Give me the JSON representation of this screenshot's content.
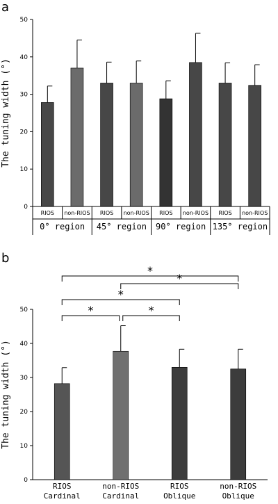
{
  "chart_data": [
    {
      "panel": "a",
      "type": "bar",
      "ylabel": "The tuning width (°)",
      "ylim": [
        0,
        50
      ],
      "yticks": [
        0,
        10,
        20,
        30,
        40,
        50
      ],
      "categories": [
        "RIOS",
        "non-RIOS",
        "RIOS",
        "non-RIOS",
        "RIOS",
        "non-RIOS",
        "RIOS",
        "non-RIOS"
      ],
      "groups": [
        "0° region",
        "45° region",
        "90° region",
        "135° region"
      ],
      "values": [
        27.8,
        37.0,
        33.0,
        33.0,
        28.8,
        38.5,
        33.0,
        32.4
      ],
      "errors": [
        4.4,
        7.5,
        5.6,
        5.9,
        4.8,
        7.8,
        5.4,
        5.5
      ],
      "colors": [
        "#474747",
        "#6b6b6b",
        "#474747",
        "#6b6b6b",
        "#333333",
        "#474747",
        "#474747",
        "#474747"
      ]
    },
    {
      "panel": "b",
      "type": "bar",
      "ylabel": "The tuning width (°)",
      "ylim": [
        0,
        50
      ],
      "yticks": [
        0,
        10,
        20,
        30,
        40,
        50
      ],
      "categories": [
        {
          "line1": "RIOS",
          "line2": "Cardinal"
        },
        {
          "line1": "non-RIOS",
          "line2": "Cardinal"
        },
        {
          "line1": "RIOS",
          "line2": "Oblique"
        },
        {
          "line1": "non-RIOS",
          "line2": "Oblique"
        }
      ],
      "values": [
        28.2,
        37.7,
        33.0,
        32.5
      ],
      "errors": [
        4.7,
        7.5,
        5.3,
        5.8
      ],
      "colors": [
        "#555555",
        "#707070",
        "#3c3c3c",
        "#3c3c3c"
      ],
      "significance": [
        {
          "from": 0,
          "to": 3,
          "label": "*"
        },
        {
          "from": 1,
          "to": 3,
          "label": "*"
        },
        {
          "from": 0,
          "to": 2,
          "label": "*"
        },
        {
          "from": 0,
          "to": 1,
          "label": "*"
        },
        {
          "from": 1,
          "to": 2,
          "label": "*"
        }
      ]
    }
  ]
}
